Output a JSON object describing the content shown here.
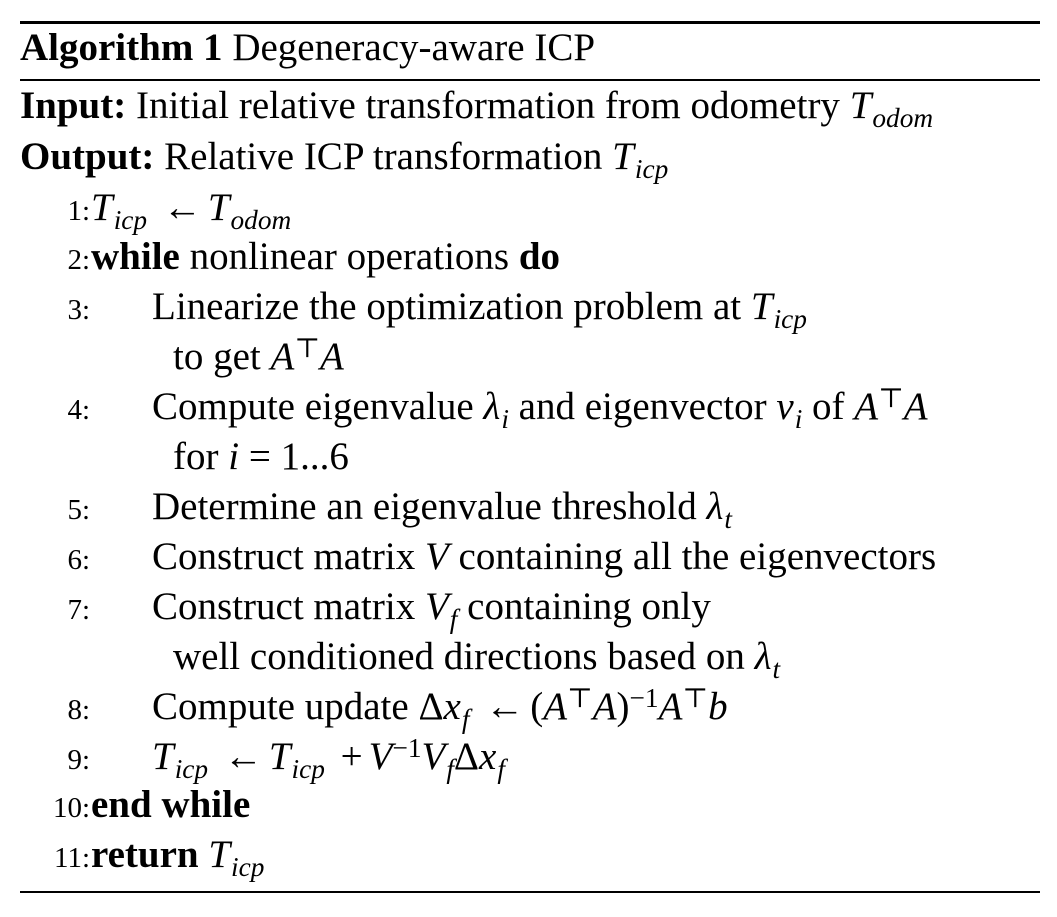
{
  "algorithm": {
    "label": "Algorithm 1",
    "title": "Degeneracy-aware ICP",
    "input_label": "Input:",
    "input_text": "Initial relative transformation from odometry",
    "input_symbol": "T",
    "input_sub": "odom",
    "output_label": "Output:",
    "output_text": "Relative ICP transformation",
    "output_symbol": "T",
    "output_sub": "icp"
  },
  "steps": {
    "s1": {
      "num": "1:",
      "lhs": "T",
      "lhs_sub": "icp",
      "arrow": "←",
      "rhs": "T",
      "rhs_sub": "odom"
    },
    "s2": {
      "num": "2:",
      "kw1": "while",
      "text": "nonlinear operations",
      "kw2": "do"
    },
    "s3": {
      "num": "3:",
      "text": "Linearize the optimization problem at",
      "sym": "T",
      "sym_sub": "icp",
      "cont_text": "to get",
      "cont_a1": "A",
      "cont_top": "⊤",
      "cont_a2": "A"
    },
    "s4": {
      "num": "4:",
      "text1": "Compute eigenvalue",
      "lambda": "λ",
      "lambda_sub": "i",
      "text2": "and eigenvector",
      "v": "v",
      "v_sub": "i",
      "text3": "of",
      "a1": "A",
      "top": "⊤",
      "a2": "A",
      "cont_text": "for",
      "cont_i": "i",
      "cont_eq": "=",
      "cont_range": "1...6"
    },
    "s5": {
      "num": "5:",
      "text": "Determine an eigenvalue threshold",
      "lambda": "λ",
      "lambda_sub": "t"
    },
    "s6": {
      "num": "6:",
      "text1": "Construct matrix",
      "sym": "V",
      "text2": "containing all the eigenvectors"
    },
    "s7": {
      "num": "7:",
      "text1": "Construct matrix",
      "sym": "V",
      "sym_sub": "f",
      "text2": "containing only",
      "cont_text": "well conditioned directions based on",
      "cont_lambda": "λ",
      "cont_lambda_sub": "t"
    },
    "s8": {
      "num": "8:",
      "text": "Compute update",
      "delta": "Δ",
      "x": "x",
      "x_sub": "f",
      "arrow": "←",
      "lp": "(",
      "a1": "A",
      "top1": "⊤",
      "a2": "A",
      "rp": ")",
      "inv": "−1",
      "a3": "A",
      "top2": "⊤",
      "b": "b"
    },
    "s9": {
      "num": "9:",
      "lhs": "T",
      "lhs_sub": "icp",
      "arrow": "←",
      "t2": "T",
      "t2_sub": "icp",
      "plus": "+",
      "v1": "V",
      "inv": "−1",
      "v2": "V",
      "v2_sub": "f",
      "delta": "Δ",
      "x": "x",
      "x_sub": "f"
    },
    "s10": {
      "num": "10:",
      "kw": "end while"
    },
    "s11": {
      "num": "11:",
      "kw": "return",
      "sym": "T",
      "sym_sub": "icp"
    }
  }
}
